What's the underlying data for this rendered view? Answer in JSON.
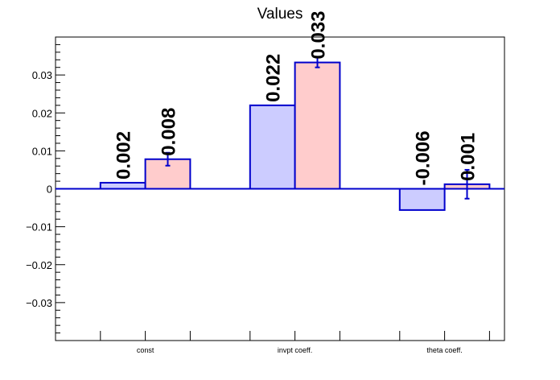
{
  "chart_data": {
    "type": "bar",
    "title": "Values",
    "categories": [
      "const",
      "invpt coeff.",
      "theta coeff."
    ],
    "ylim": [
      -0.04,
      0.04
    ],
    "yticks": [
      -0.03,
      -0.02,
      -0.01,
      0,
      0.01,
      0.02,
      0.03
    ],
    "ytick_labels": [
      "−0.03",
      "−0.02",
      "−0.01",
      "0",
      "0.01",
      "0.02",
      "0.03"
    ],
    "series": [
      {
        "values": [
          0.0016,
          0.022,
          -0.0056
        ],
        "errors": [
          null,
          null,
          null
        ],
        "labels": [
          "0.002",
          "0.022",
          "-0.006"
        ],
        "fill": "#ccccff",
        "stroke": "#0000cc"
      },
      {
        "values": [
          0.0078,
          0.0333,
          0.0012
        ],
        "errors": [
          0.0017,
          0.0013,
          0.0038
        ],
        "labels": [
          "0.008",
          "0.033",
          "0.001"
        ],
        "fill": "#ffcccc",
        "stroke": "#0000cc"
      }
    ],
    "zero_line_color": "#0000cc",
    "grid": false
  }
}
